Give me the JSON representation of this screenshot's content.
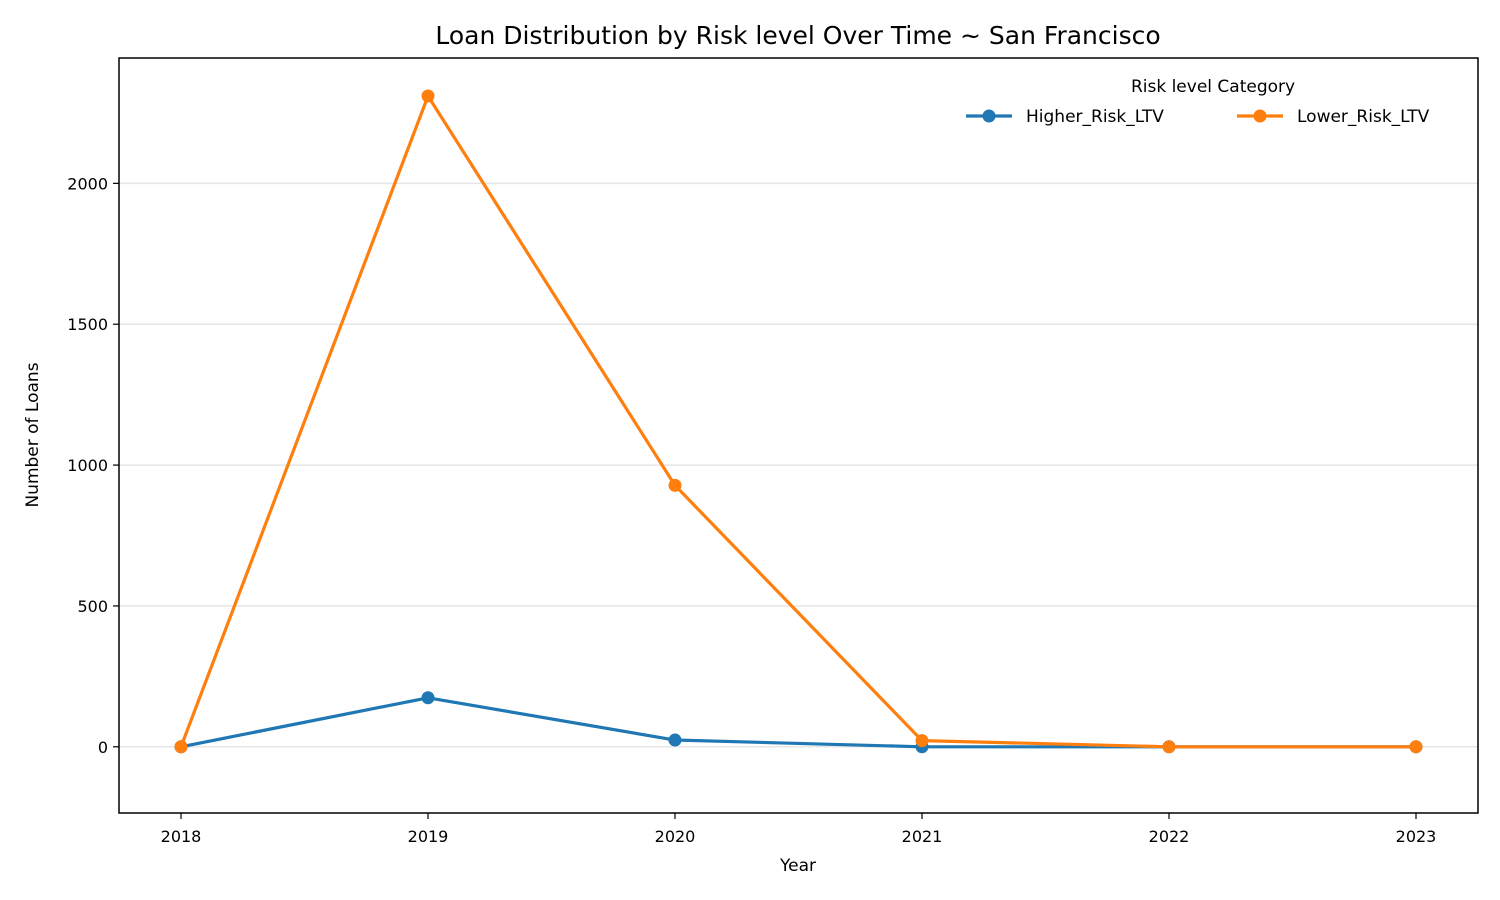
{
  "chart_data": {
    "type": "line",
    "title": "Loan Distribution by Risk level Over Time ~ San Francisco",
    "xlabel": "Year",
    "ylabel": "Number of Loans",
    "x": [
      "2018",
      "2019",
      "2020",
      "2021",
      "2022",
      "2023"
    ],
    "ylim": [
      -235,
      2445
    ],
    "yticks": [
      0,
      500,
      1000,
      1500,
      2000
    ],
    "grid": "horizontal",
    "legend": {
      "title": "Risk level Category",
      "placement": "top-right"
    },
    "series": [
      {
        "name": "Higher_Risk_LTV",
        "color": "#1f77b4",
        "values": [
          0,
          174,
          24,
          0,
          0,
          0
        ]
      },
      {
        "name": "Lower_Risk_LTV",
        "color": "#ff7f0e",
        "values": [
          0,
          2310,
          928,
          22,
          0,
          0
        ]
      }
    ]
  }
}
